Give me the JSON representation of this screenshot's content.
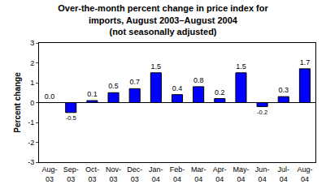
{
  "chart_data": {
    "type": "bar",
    "title": "Over-the-month percent change in price index for\nimports, August 2003–August 2004\n(not seasonally adjusted)",
    "y_label": "Percent change",
    "categories": [
      "Aug-03",
      "Sep-03",
      "Oct-03",
      "Nov-03",
      "Dec-03",
      "Jan-04",
      "Feb-04",
      "Mar-04",
      "Apr-04",
      "May-04",
      "Jun-04",
      "Jul-04",
      "Aug-04"
    ],
    "values": [
      0.0,
      -0.5,
      0.1,
      0.5,
      0.7,
      1.5,
      0.4,
      0.8,
      0.2,
      1.5,
      -0.2,
      0.3,
      1.7
    ],
    "value_labels": [
      "0.0",
      "-0.5",
      "0.1",
      "0.5",
      "0.7",
      "1.5",
      "0.4",
      "0.8",
      "0.2",
      "1.5",
      "-0.2",
      "0.3",
      "1.7"
    ],
    "data_labels": true,
    "color": "#0000ff",
    "ylim": [
      -3,
      3
    ],
    "yticks": [
      -3,
      -2,
      -1,
      0,
      1,
      2,
      3
    ],
    "grid": false
  }
}
